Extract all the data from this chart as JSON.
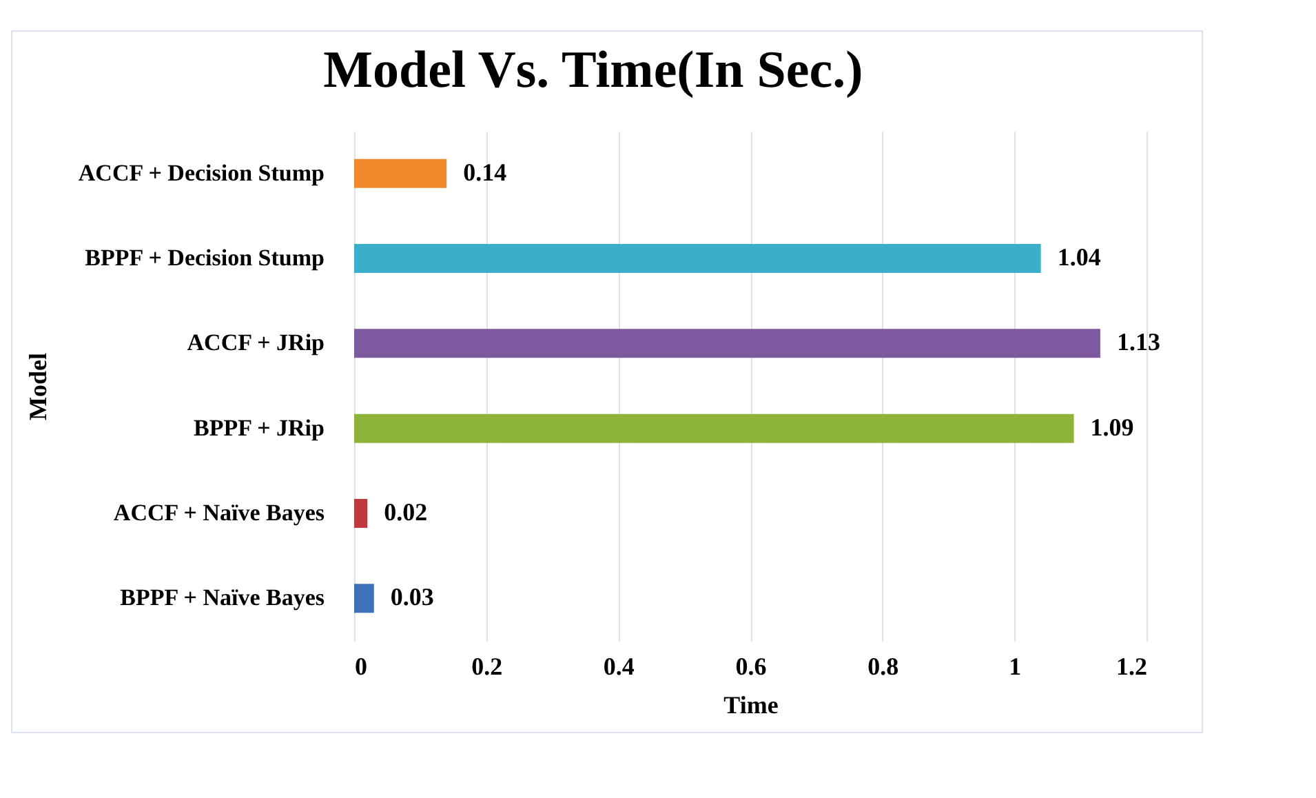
{
  "chart_data": {
    "type": "bar",
    "orientation": "horizontal",
    "title": "Model Vs. Time(In Sec.)",
    "xlabel": "Time",
    "ylabel": "Model",
    "categories": [
      "ACCF + Decision Stump",
      "BPPF + Decision Stump",
      "ACCF + JRip",
      "BPPF + JRip",
      "ACCF + Naïve Bayes",
      "BPPF + Naïve Bayes"
    ],
    "values": [
      0.14,
      1.04,
      1.13,
      1.09,
      0.02,
      0.03
    ],
    "colors": [
      "#f0892b",
      "#3bafc9",
      "#7d5aa0",
      "#8db33a",
      "#c0393a",
      "#3d72b8"
    ],
    "xlim": [
      0,
      1.2
    ],
    "xticks": [
      0,
      0.2,
      0.4,
      0.6,
      0.8,
      1,
      1.2
    ],
    "grid": "x",
    "data_labels": true,
    "legend": false
  }
}
